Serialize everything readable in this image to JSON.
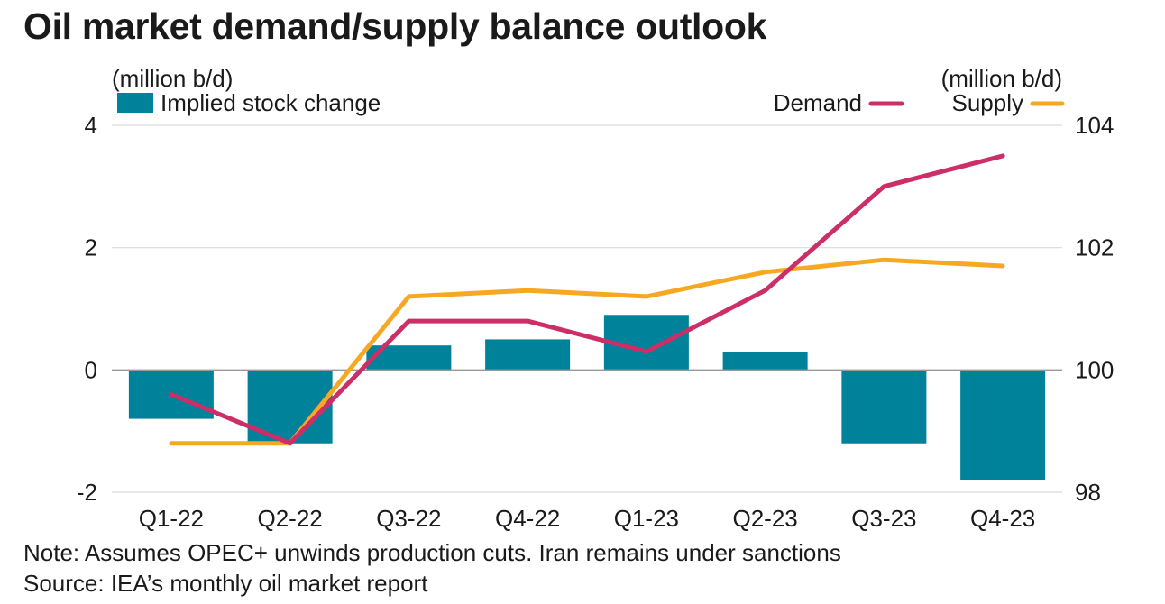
{
  "title": "Oil market demand/supply balance outlook",
  "note": "Note: Assumes OPEC+ unwinds production cuts. Iran remains under sanctions",
  "source": "Source: IEA’s monthly oil market report",
  "colors": {
    "bar": "#00829b",
    "demand": "#cc2e68",
    "supply": "#f7a823",
    "grid": "#d9d9d9",
    "baseline": "#999999",
    "text": "#1a1a1a"
  },
  "chart_data": {
    "type": "bar",
    "categories": [
      "Q1-22",
      "Q2-22",
      "Q3-22",
      "Q4-22",
      "Q1-23",
      "Q2-23",
      "Q3-23",
      "Q4-23"
    ],
    "series": [
      {
        "name": "Implied stock change",
        "type": "bar",
        "axis": "left",
        "values": [
          -0.8,
          -1.2,
          0.4,
          0.5,
          0.9,
          0.3,
          -1.2,
          -1.8
        ]
      },
      {
        "name": "Demand",
        "type": "line",
        "axis": "right",
        "values": [
          99.6,
          98.8,
          100.8,
          100.8,
          100.3,
          101.3,
          103.0,
          103.5
        ]
      },
      {
        "name": "Supply",
        "type": "line",
        "axis": "right",
        "values": [
          98.8,
          98.8,
          101.2,
          101.3,
          101.2,
          101.6,
          101.8,
          101.7
        ]
      }
    ],
    "left_axis": {
      "label": "(million b/d)",
      "ylim": [
        -2,
        4
      ],
      "ticks": [
        "4",
        "2",
        "0",
        "-2"
      ],
      "tick_values": [
        4,
        2,
        0,
        -2
      ]
    },
    "right_axis": {
      "label": "(million b/d)",
      "ylim": [
        98,
        104
      ],
      "ticks": [
        "104",
        "102",
        "100",
        "98"
      ],
      "tick_values": [
        104,
        102,
        100,
        98
      ]
    },
    "grid": true,
    "legend": {
      "bar_label": "Implied stock change",
      "demand_label": "Demand",
      "supply_label": "Supply",
      "placement": "top"
    }
  }
}
